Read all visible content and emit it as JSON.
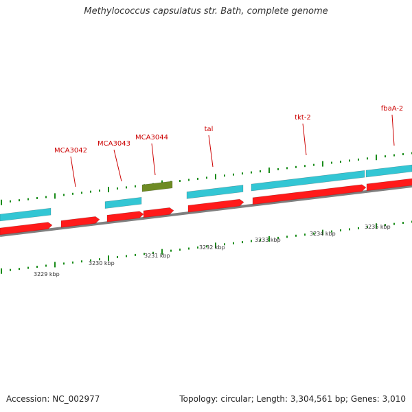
{
  "title": "Methylococcus capsulatus str. Bath, complete genome",
  "accession_text": "Accession: NC_002977",
  "stats_text": "Topology: circular; Length: 3,304,561 bp; Genes: 3,010",
  "colors": {
    "cds_forward": "#33c6d4",
    "cds_reverse": "#ff1a1a",
    "gene_other": "#6e8b24",
    "backbone": "#808080",
    "tick": "#1a8c1a",
    "label": "#cc0000"
  },
  "scale_labels": [
    "3229 kbp",
    "3230 kbp",
    "3231 kbp",
    "3232 kbp",
    "3233 kbp",
    "3234 kbp",
    "3235 kbp"
  ],
  "gene_labels": [
    "MCA3042",
    "MCA3043",
    "MCA3044",
    "tal",
    "tkt-2",
    "fbaA-2"
  ]
}
